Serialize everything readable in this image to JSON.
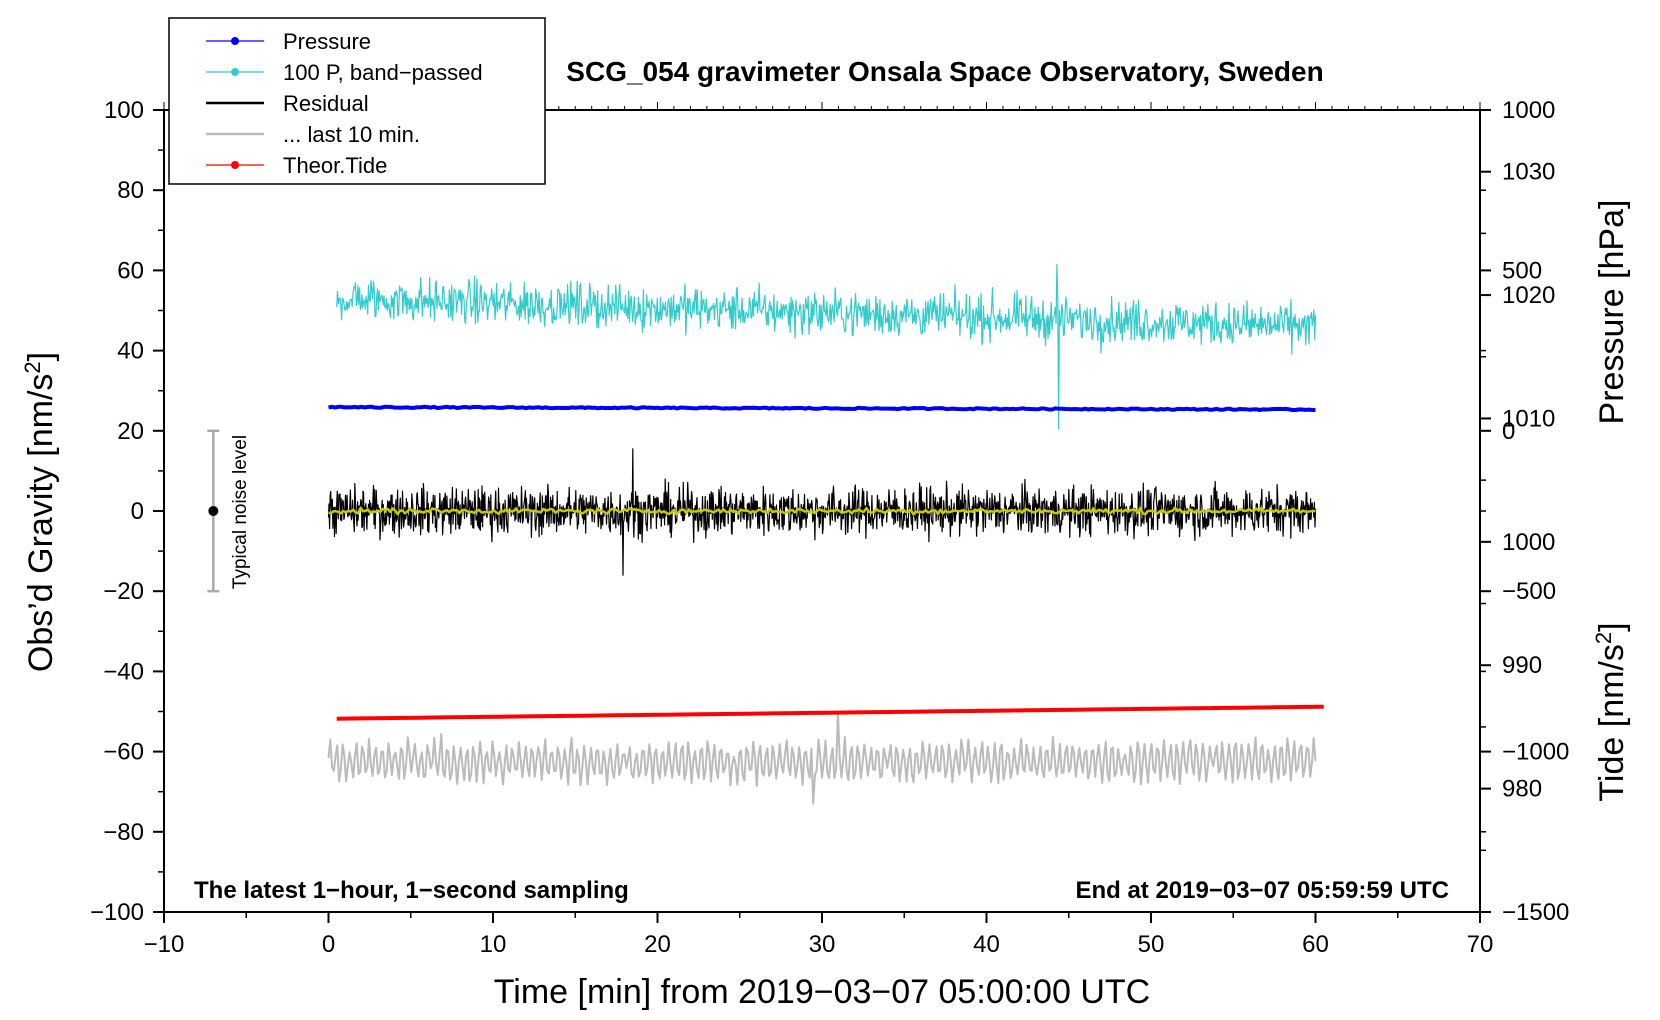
{
  "chart_data": {
    "type": "line",
    "title": "SCG_054 gravimeter Onsala Space Observatory, Sweden",
    "xlabel": "Time [min] from 2019−03−07 05:00:00 UTC",
    "ylabel_left": "Obs’d Gravity [nm/s²]",
    "ylabel_right_top": "Pressure [hPa]",
    "ylabel_right_bottom": "Tide [nm/s²]",
    "xlim": [
      -10,
      70
    ],
    "ylim": [
      -100,
      100
    ],
    "pressure_axis_range": [
      970,
      1035
    ],
    "tide_axis_range": [
      -1500,
      1000
    ],
    "x_ticks": [
      "−10",
      "0",
      "10",
      "20",
      "30",
      "40",
      "50",
      "60",
      "70"
    ],
    "y_ticks": [
      "100",
      "80",
      "60",
      "40",
      "20",
      "0",
      "−20",
      "−40",
      "−60",
      "−80",
      "−100"
    ],
    "pressure_ticks": [
      "1030",
      "1020",
      "1010",
      "1000",
      "990",
      "980"
    ],
    "tide_ticks": [
      "1000",
      "500",
      "0",
      "−500",
      "−1000",
      "−1500"
    ],
    "legend": {
      "location": "top-left",
      "entries": [
        {
          "label": "Pressure",
          "color": "#0000ff",
          "marker": "dot"
        },
        {
          "label": "100 P, band−passed",
          "color": "#33cccc",
          "marker": "dot"
        },
        {
          "label": "Residual",
          "color": "#000000",
          "marker": "none"
        },
        {
          "label": "... last 10 min.",
          "color": "#bbbbbb",
          "marker": "none"
        },
        {
          "label": "Theor.Tide",
          "color": "#ff0000",
          "marker": "dot"
        }
      ]
    },
    "annotations": {
      "left_note": "The latest 1−hour, 1−second sampling",
      "right_note": "End at 2019−03−07 05:59:59 UTC",
      "noise_label": "Typical noise level",
      "noise_bar": {
        "x": -7,
        "center": 0,
        "low": -20,
        "high": 20
      }
    },
    "series": [
      {
        "name": "Pressure",
        "color": "#0000ff",
        "x_range": [
          0,
          60
        ],
        "description": "nearly constant, plotted on gravity axis",
        "start_value": 25.9,
        "end_value": 25.3
      },
      {
        "name": "100 P, band−passed",
        "color": "#33cccc",
        "x_range": [
          0.5,
          60
        ],
        "mean_start": 53,
        "mean_end": 46,
        "amplitude": 7,
        "max": {
          "x": 44.3,
          "y": 61.5
        },
        "min": {
          "x": 44.4,
          "y": 20.5
        }
      },
      {
        "name": "Residual",
        "color": "#000000",
        "x_range": [
          0,
          60
        ],
        "mean": 0,
        "amplitude": 6,
        "max": {
          "x": 18.5,
          "y": 15.5
        },
        "min": {
          "x": 17.9,
          "y": -16
        }
      },
      {
        "name": "Residual smoothed",
        "color": "#c8c800",
        "x_range": [
          0,
          60
        ],
        "mean": 0,
        "amplitude": 0.8
      },
      {
        "name": "... last 10 min.",
        "color": "#bbbbbb",
        "x_range": [
          0,
          60
        ],
        "mean": -62.5,
        "amplitude": 5,
        "max": {
          "x": 31,
          "y": -50
        },
        "min": {
          "x": 29.5,
          "y": -73
        }
      },
      {
        "name": "Theor.Tide",
        "color": "#ff0000",
        "x_range": [
          0.5,
          60.5
        ],
        "start_value": -51.8,
        "end_value": -48.8
      }
    ]
  }
}
